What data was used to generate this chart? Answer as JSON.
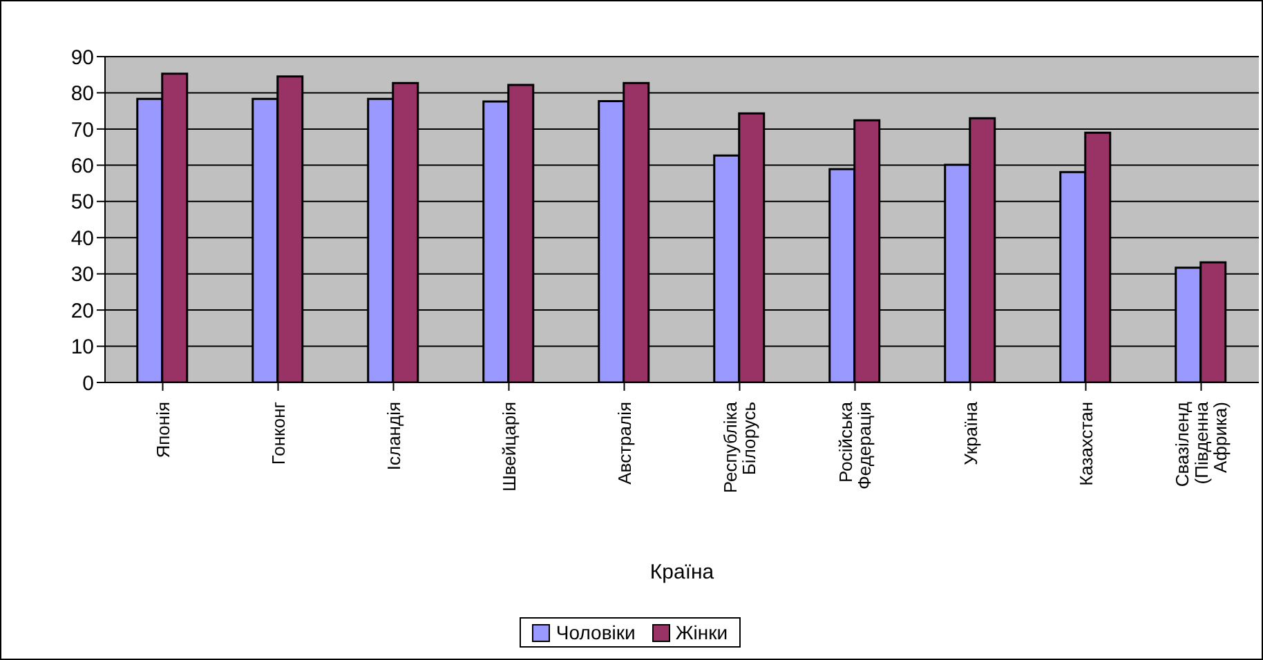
{
  "chart_data": {
    "type": "bar",
    "xlabel": "Країна",
    "categories": [
      "Японія",
      "Гонконг",
      "Ісландія",
      "Швейцарія",
      "Австралія",
      "Республіка Білорусь",
      "Російська Федерація",
      "Україна",
      "Казахстан",
      "Свазіленд (Південна Африка)"
    ],
    "series": [
      {
        "name": "Чоловіки",
        "color": "#9999ff",
        "values": [
          78.3,
          78.3,
          78.3,
          77.6,
          77.7,
          62.7,
          58.9,
          60.1,
          58.1,
          31.7
        ]
      },
      {
        "name": "Жінки",
        "color": "#993366",
        "values": [
          85.3,
          84.5,
          82.7,
          82.2,
          82.7,
          74.3,
          72.4,
          73.0,
          69.0,
          33.2
        ]
      }
    ],
    "ylim": [
      0,
      90
    ],
    "yticks": [
      0,
      10,
      20,
      30,
      40,
      50,
      60,
      70,
      80,
      90
    ],
    "grid": "y",
    "legend": "bottom"
  }
}
